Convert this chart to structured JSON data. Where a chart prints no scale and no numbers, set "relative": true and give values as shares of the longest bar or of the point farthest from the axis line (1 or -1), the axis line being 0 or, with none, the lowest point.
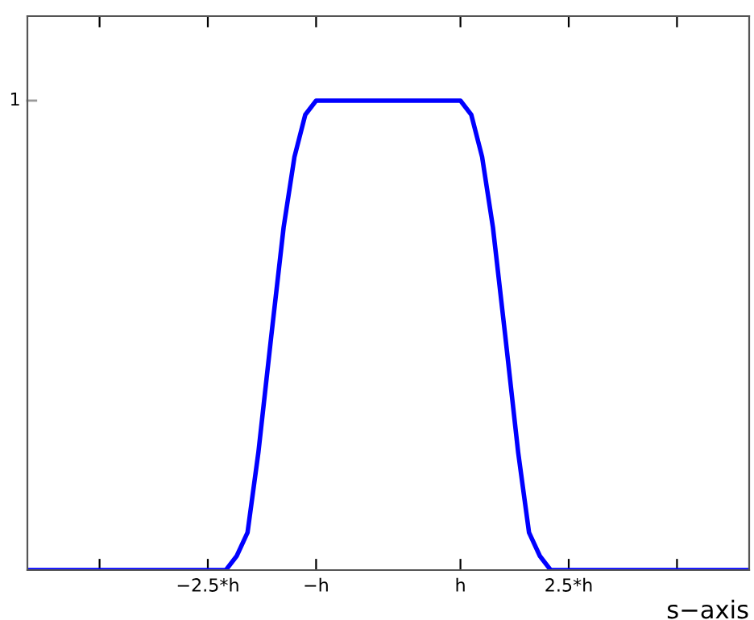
{
  "chart_data": {
    "type": "line",
    "xlabel": "s−axis",
    "relative": true,
    "xlim": [
      -5,
      5
    ],
    "xticks": [
      {
        "value": -4,
        "label": null
      },
      {
        "value": -2.5,
        "label": "−2.5*h"
      },
      {
        "value": -1,
        "label": "−h"
      },
      {
        "value": 1,
        "label": "h"
      },
      {
        "value": 2.5,
        "label": "2.5*h"
      },
      {
        "value": 4,
        "label": null
      }
    ],
    "series": [
      {
        "color": "#0000ff",
        "x": [
          -5,
          -2.25,
          -2.1,
          -1.95,
          -1.8,
          -1.62,
          -1.45,
          -1.3,
          -1.15,
          -1.0,
          1.0,
          1.15,
          1.3,
          1.45,
          1.62,
          1.8,
          1.95,
          2.1,
          2.25,
          5
        ],
        "values": [
          0,
          0,
          0.03,
          0.08,
          0.25,
          0.5,
          0.73,
          0.88,
          0.97,
          1,
          1,
          0.97,
          0.88,
          0.73,
          0.5,
          0.25,
          0.08,
          0.03,
          0,
          0
        ]
      }
    ],
    "annotations": [
      "1"
    ],
    "grid": false,
    "legend": false,
    "marker": "none",
    "line_style": "solid"
  }
}
